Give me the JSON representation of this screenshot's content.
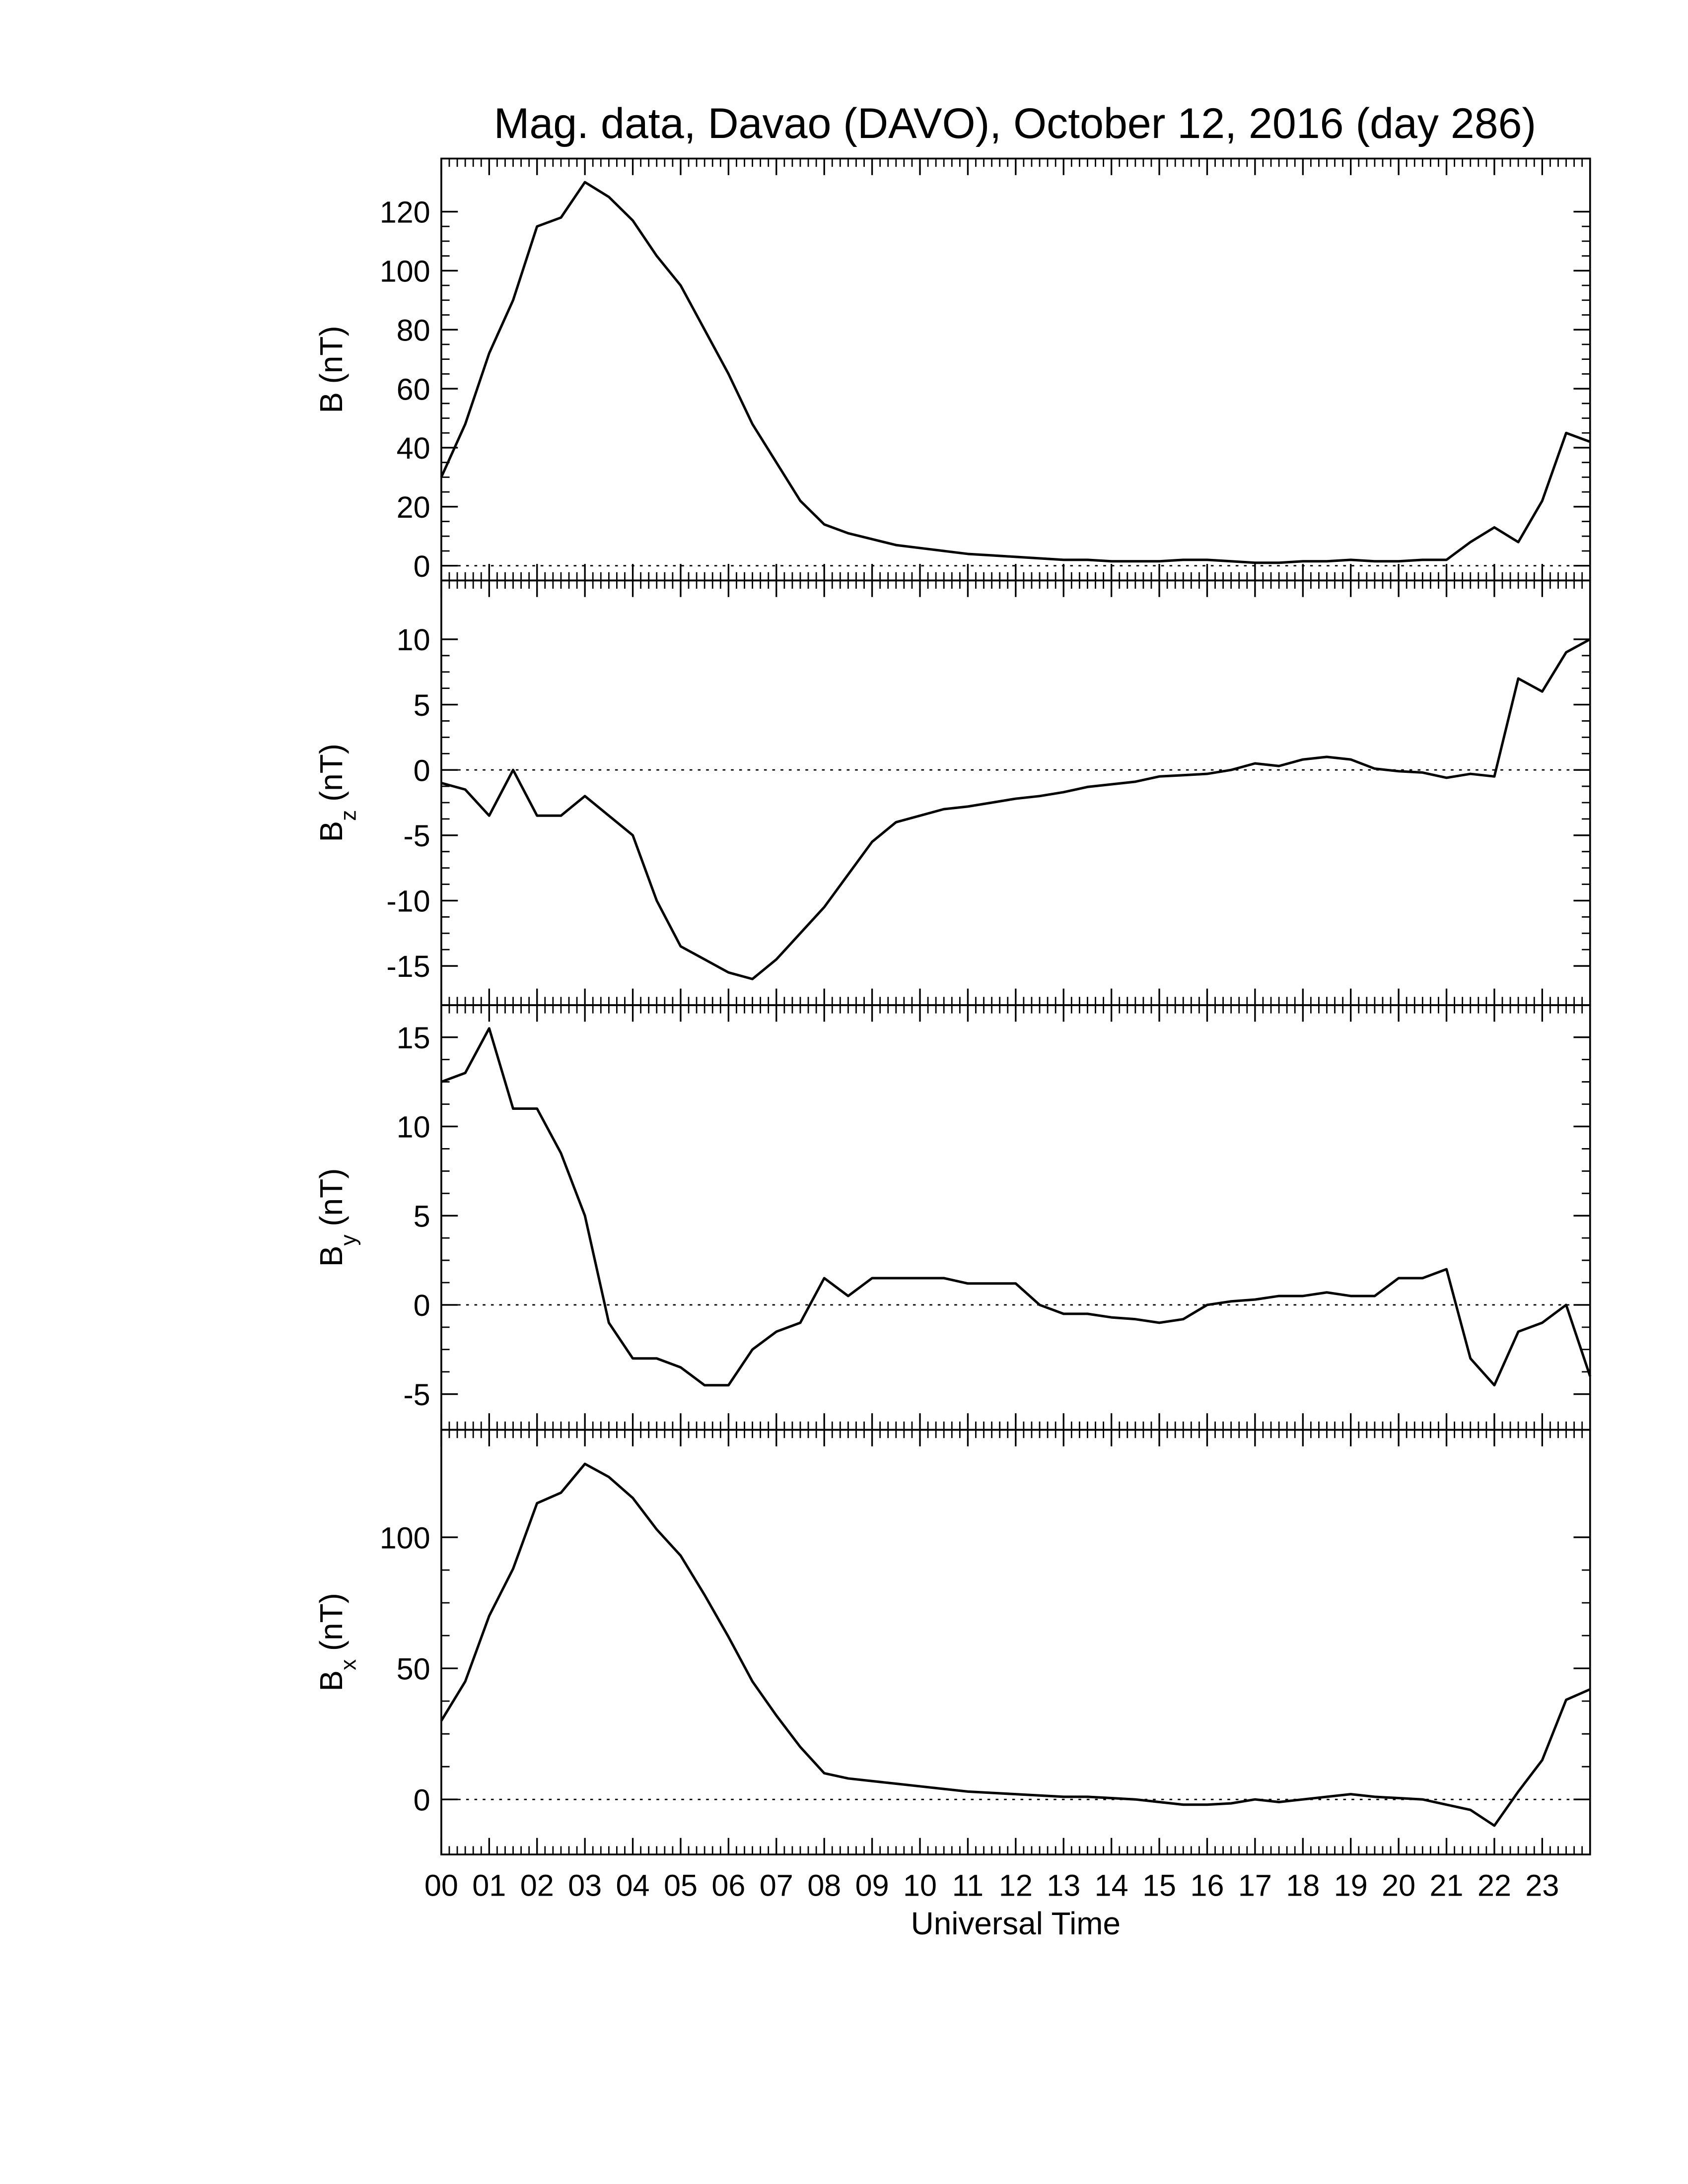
{
  "chart_data": [
    {
      "type": "line",
      "title": "Mag. data, Davao (DAVO), October 12, 2016 (day 286)",
      "ylabel_symbol": "B",
      "ylabel_unit": "(nT)",
      "xlim": [
        0,
        24
      ],
      "ylim": [
        -5,
        138
      ],
      "yticks": [
        0,
        20,
        40,
        60,
        80,
        100,
        120
      ],
      "hline": 0,
      "color": "#000000",
      "x": [
        0,
        0.5,
        1,
        1.5,
        2,
        2.5,
        3,
        3.5,
        4,
        4.5,
        5,
        5.5,
        6,
        6.5,
        7,
        7.5,
        8,
        8.5,
        9,
        9.5,
        10,
        10.5,
        11,
        11.5,
        12,
        12.5,
        13,
        13.5,
        14,
        14.5,
        15,
        15.5,
        16,
        16.5,
        17,
        17.5,
        18,
        18.5,
        19,
        19.5,
        20,
        20.5,
        21,
        21.5,
        22,
        22.5,
        23,
        23.5,
        24
      ],
      "values": [
        30,
        48,
        72,
        90,
        115,
        118,
        130,
        125,
        117,
        105,
        95,
        80,
        65,
        48,
        35,
        22,
        14,
        11,
        9,
        7,
        6,
        5,
        4,
        3.5,
        3,
        2.5,
        2,
        2,
        1.5,
        1.5,
        1.5,
        2,
        2,
        1.5,
        1,
        1,
        1.5,
        1.5,
        2,
        1.5,
        1.5,
        2,
        2,
        8,
        13,
        8,
        22,
        45,
        42
      ]
    },
    {
      "type": "line",
      "ylabel_symbol": "B",
      "ylabel_subscript": "z",
      "ylabel_unit": "(nT)",
      "xlim": [
        0,
        24
      ],
      "ylim": [
        -18,
        14.5
      ],
      "yticks": [
        -15,
        -10,
        -5,
        0,
        5,
        10
      ],
      "hline": 0,
      "color": "#000000",
      "x": [
        0,
        0.5,
        1,
        1.5,
        2,
        2.5,
        3,
        3.5,
        4,
        4.5,
        5,
        5.5,
        6,
        6.5,
        7,
        7.5,
        8,
        8.5,
        9,
        9.5,
        10,
        10.5,
        11,
        11.5,
        12,
        12.5,
        13,
        13.5,
        14,
        14.5,
        15,
        15.5,
        16,
        16.5,
        17,
        17.5,
        18,
        18.5,
        19,
        19.5,
        20,
        20.5,
        21,
        21.5,
        22,
        22.5,
        23,
        23.5,
        24
      ],
      "values": [
        -1,
        -1.5,
        -3.5,
        0,
        -3.5,
        -3.5,
        -2,
        -3.5,
        -5,
        -10,
        -13.5,
        -14.5,
        -15.5,
        -16,
        -14.5,
        -12.5,
        -10.5,
        -8,
        -5.5,
        -4,
        -3.5,
        -3,
        -2.8,
        -2.5,
        -2.2,
        -2,
        -1.7,
        -1.3,
        -1.1,
        -0.9,
        -0.5,
        -0.4,
        -0.3,
        0,
        0.5,
        0.3,
        0.8,
        1,
        0.8,
        0.1,
        -0.1,
        -0.2,
        -0.6,
        -0.3,
        -0.5,
        7,
        6,
        9,
        10
      ]
    },
    {
      "type": "line",
      "ylabel_symbol": "B",
      "ylabel_subscript": "y",
      "ylabel_unit": "(nT)",
      "xlim": [
        0,
        24
      ],
      "ylim": [
        -7,
        16.8
      ],
      "yticks": [
        -5,
        0,
        5,
        10,
        15
      ],
      "hline": 0,
      "color": "#000000",
      "x": [
        0,
        0.5,
        1,
        1.5,
        2,
        2.5,
        3,
        3.5,
        4,
        4.5,
        5,
        5.5,
        6,
        6.5,
        7,
        7.5,
        8,
        8.5,
        9,
        9.5,
        10,
        10.5,
        11,
        11.5,
        12,
        12.5,
        13,
        13.5,
        14,
        14.5,
        15,
        15.5,
        16,
        16.5,
        17,
        17.5,
        18,
        18.5,
        19,
        19.5,
        20,
        20.5,
        21,
        21.5,
        22,
        22.5,
        23,
        23.5,
        24
      ],
      "values": [
        12.5,
        13,
        15.5,
        11,
        11,
        8.5,
        5,
        -1,
        -3,
        -3,
        -3.5,
        -4.5,
        -4.5,
        -2.5,
        -1.5,
        -1,
        1.5,
        0.5,
        1.5,
        1.5,
        1.5,
        1.5,
        1.2,
        1.2,
        1.2,
        0,
        -0.5,
        -0.5,
        -0.7,
        -0.8,
        -1,
        -0.8,
        0,
        0.2,
        0.3,
        0.5,
        0.5,
        0.7,
        0.5,
        0.5,
        1.5,
        1.5,
        2,
        -3,
        -4.5,
        -1.5,
        -1,
        0,
        -4
      ]
    },
    {
      "type": "line",
      "ylabel_symbol": "B",
      "ylabel_subscript": "x",
      "ylabel_unit": "(nT)",
      "xlabel": "Universal Time",
      "xlim": [
        0,
        24
      ],
      "ylim": [
        -21,
        141
      ],
      "yticks": [
        0,
        50,
        100
      ],
      "hline": 0,
      "color": "#000000",
      "xticks": [
        {
          "value": 0,
          "label": "00"
        },
        {
          "value": 1,
          "label": "01"
        },
        {
          "value": 2,
          "label": "02"
        },
        {
          "value": 3,
          "label": "03"
        },
        {
          "value": 4,
          "label": "04"
        },
        {
          "value": 5,
          "label": "05"
        },
        {
          "value": 6,
          "label": "06"
        },
        {
          "value": 7,
          "label": "07"
        },
        {
          "value": 8,
          "label": "08"
        },
        {
          "value": 9,
          "label": "09"
        },
        {
          "value": 10,
          "label": "10"
        },
        {
          "value": 11,
          "label": "11"
        },
        {
          "value": 12,
          "label": "12"
        },
        {
          "value": 13,
          "label": "13"
        },
        {
          "value": 14,
          "label": "14"
        },
        {
          "value": 15,
          "label": "15"
        },
        {
          "value": 16,
          "label": "16"
        },
        {
          "value": 17,
          "label": "17"
        },
        {
          "value": 18,
          "label": "18"
        },
        {
          "value": 19,
          "label": "19"
        },
        {
          "value": 20,
          "label": "20"
        },
        {
          "value": 21,
          "label": "21"
        },
        {
          "value": 22,
          "label": "22"
        },
        {
          "value": 23,
          "label": "23"
        }
      ],
      "x": [
        0,
        0.5,
        1,
        1.5,
        2,
        2.5,
        3,
        3.5,
        4,
        4.5,
        5,
        5.5,
        6,
        6.5,
        7,
        7.5,
        8,
        8.5,
        9,
        9.5,
        10,
        10.5,
        11,
        11.5,
        12,
        12.5,
        13,
        13.5,
        14,
        14.5,
        15,
        15.5,
        16,
        16.5,
        17,
        17.5,
        18,
        18.5,
        19,
        19.5,
        20,
        20.5,
        21,
        21.5,
        22,
        22.5,
        23,
        23.5,
        24
      ],
      "values": [
        30,
        45,
        70,
        88,
        113,
        117,
        128,
        123,
        115,
        103,
        93,
        78,
        62,
        45,
        32,
        20,
        10,
        8,
        7,
        6,
        5,
        4,
        3,
        2.5,
        2,
        1.5,
        1,
        1,
        0.5,
        0,
        -1,
        -2,
        -2,
        -1.5,
        0,
        -1,
        0,
        1,
        2,
        1,
        0.5,
        0,
        -2,
        -4,
        -10,
        3,
        15,
        38,
        42
      ]
    }
  ]
}
